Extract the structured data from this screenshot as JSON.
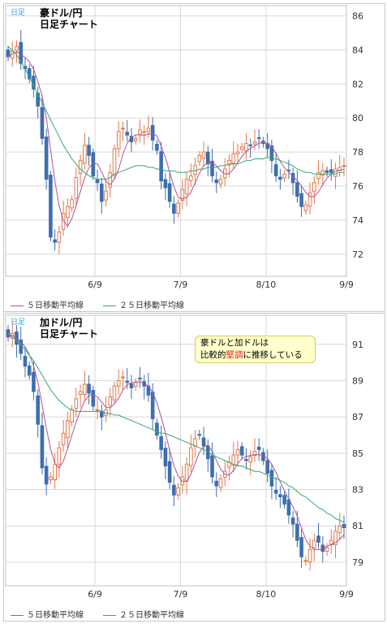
{
  "colors": {
    "up": "#e4774a",
    "down": "#3c6fb0",
    "ma5": "#b2509a",
    "ma25": "#2eaa6f",
    "grid": "#d8d8d8",
    "axis_text": "#333333"
  },
  "legend": {
    "ma5": "５日移動平均線",
    "ma25": "２５日移動平均線"
  },
  "chart_data": [
    {
      "type": "candlestick",
      "tag": "日足",
      "title_line1": "豪ドル/円",
      "title_line2": "日足チャート",
      "x_ticks": [
        "6/9",
        "7/9",
        "8/10",
        "9/9"
      ],
      "y_ticks": [
        86,
        84,
        82,
        80,
        78,
        76,
        74,
        72
      ],
      "ylim": [
        70.7,
        86.6
      ],
      "grid": true,
      "closes": [
        83.6,
        83.9,
        84.2,
        83.2,
        82.9,
        82.3,
        81.7,
        80.7,
        78.8,
        76.4,
        73.0,
        72.7,
        73.3,
        74.4,
        74.8,
        75.2,
        76.5,
        77.5,
        78.4,
        77.8,
        76.6,
        76.2,
        75.1,
        75.7,
        76.8,
        78.2,
        79.2,
        79.4,
        79.0,
        78.6,
        78.8,
        79.3,
        79.2,
        79.4,
        78.7,
        78.1,
        76.3,
        75.9,
        75.1,
        74.4,
        75.0,
        75.8,
        76.4,
        76.6,
        77.2,
        77.8,
        78.0,
        77.3,
        76.6,
        76.2,
        76.4,
        77.0,
        77.5,
        77.9,
        78.0,
        78.3,
        78.5,
        78.4,
        78.6,
        78.8,
        78.5,
        78.2,
        77.5,
        76.6,
        76.4,
        76.7,
        76.9,
        76.2,
        75.4,
        74.8,
        74.9,
        75.6,
        76.2,
        76.8,
        76.9,
        76.8,
        76.8,
        77.0,
        77.1,
        77.2
      ],
      "ma25": [
        84.2,
        84.0,
        83.7,
        83.3,
        82.9,
        82.4,
        81.9,
        81.4,
        80.9,
        80.4,
        79.9,
        79.4,
        78.9,
        78.4,
        78.0,
        77.6,
        77.3,
        77.0,
        76.8,
        76.6,
        76.5,
        76.4,
        76.4,
        76.4,
        76.5,
        76.7,
        76.8,
        76.9,
        77.0,
        77.1,
        77.2,
        77.2,
        77.2,
        77.1,
        77.1,
        77.0,
        77.0,
        76.9,
        76.9,
        76.9,
        76.8,
        76.8,
        76.8,
        76.9,
        76.9,
        77.0,
        77.0,
        77.1,
        77.1,
        77.1,
        77.2,
        77.2,
        77.3,
        77.3,
        77.3,
        77.4,
        77.5,
        77.5,
        77.6,
        77.6,
        77.6,
        77.7,
        77.6,
        77.6,
        77.5,
        77.4,
        77.3,
        77.2,
        77.0,
        76.9,
        76.8,
        76.8,
        76.7,
        76.7,
        76.7,
        76.7,
        76.7,
        76.7,
        76.8,
        76.8
      ],
      "ma25_label_gap": 0
    },
    {
      "type": "candlestick",
      "tag": "日足",
      "title_line1": "加ドル/円",
      "title_line2": "日足チャート",
      "x_ticks": [
        "6/9",
        "7/9",
        "8/10",
        "9/9"
      ],
      "y_ticks": [
        91,
        89,
        87,
        85,
        83,
        81,
        79
      ],
      "ylim": [
        77.7,
        92.6
      ],
      "grid": true,
      "annotation_line1": "豪ドルと加ドルは",
      "annotation_pre": "比較的",
      "annotation_highlight": "堅調",
      "annotation_post": "に推移している",
      "closes": [
        91.4,
        91.6,
        91.0,
        90.5,
        89.8,
        89.3,
        88.4,
        86.6,
        84.2,
        83.3,
        83.7,
        84.4,
        85.3,
        86.1,
        86.8,
        87.4,
        88.0,
        88.4,
        88.8,
        88.3,
        87.6,
        87.4,
        87.0,
        87.4,
        88.1,
        88.7,
        89.0,
        89.2,
        88.9,
        88.6,
        88.9,
        89.1,
        88.7,
        88.2,
        86.9,
        86.0,
        85.2,
        84.3,
        83.4,
        82.7,
        83.1,
        83.7,
        84.4,
        85.3,
        85.8,
        86.0,
        85.4,
        84.7,
        83.7,
        83.2,
        83.6,
        84.0,
        84.5,
        84.9,
        85.2,
        84.9,
        84.6,
        84.8,
        85.1,
        85.2,
        84.6,
        83.9,
        83.2,
        82.8,
        82.6,
        82.2,
        81.6,
        81.1,
        80.2,
        79.3,
        79.1,
        79.7,
        80.2,
        80.1,
        79.6,
        79.8,
        80.2,
        80.7,
        81.0,
        80.9
      ],
      "ma25": [
        91.6,
        91.4,
        91.2,
        91.0,
        90.7,
        90.4,
        90.1,
        89.7,
        89.3,
        88.9,
        88.5,
        88.2,
        87.9,
        87.7,
        87.5,
        87.4,
        87.3,
        87.3,
        87.3,
        87.3,
        87.3,
        87.3,
        87.3,
        87.2,
        87.2,
        87.1,
        87.1,
        87.0,
        86.9,
        86.8,
        86.7,
        86.6,
        86.5,
        86.4,
        86.3,
        86.2,
        86.1,
        86.1,
        86.0,
        85.9,
        85.8,
        85.7,
        85.6,
        85.5,
        85.4,
        85.3,
        85.2,
        85.1,
        84.9,
        84.8,
        84.7,
        84.6,
        84.5,
        84.4,
        84.3,
        84.3,
        84.2,
        84.1,
        84.0,
        84.0,
        83.9,
        83.8,
        83.7,
        83.6,
        83.5,
        83.4,
        83.2,
        83.1,
        82.9,
        82.7,
        82.6,
        82.4,
        82.2,
        82.0,
        81.9,
        81.7,
        81.6,
        81.4,
        81.3,
        81.2
      ]
    }
  ]
}
